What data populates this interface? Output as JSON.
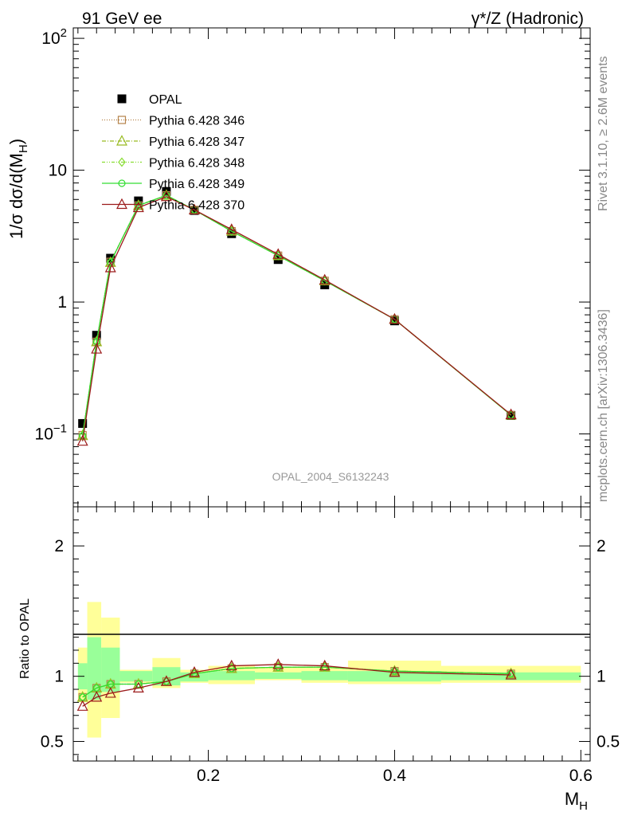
{
  "header": {
    "left_title": "91 GeV ee",
    "right_title": "γ*/Z (Hadronic)"
  },
  "side_labels": {
    "rivet": "Rivet 3.1.10, ≥ 2.6M events",
    "mcplots": "mcplots.cern.ch [arXiv:1306.3436]"
  },
  "chart_data": [
    {
      "type": "line",
      "panel": "main",
      "ylabel": "1/σ dσ/d(M_H)",
      "yscale": "log",
      "ylim": [
        0.028,
        120
      ],
      "xlim": [
        0.055,
        0.61
      ],
      "watermark": "OPAL_2004_S6132243",
      "legend_position": "top-left",
      "y_ticks": [
        {
          "value": 0.1,
          "label": "10",
          "sup": "−1"
        },
        {
          "value": 1,
          "label": "1",
          "sup": ""
        },
        {
          "value": 10,
          "label": "10",
          "sup": ""
        },
        {
          "value": 100,
          "label": "10",
          "sup": "2"
        }
      ],
      "data": {
        "x": [
          0.065,
          0.08,
          0.095,
          0.125,
          0.155,
          0.185,
          0.225,
          0.275,
          0.325,
          0.4,
          0.525
        ],
        "y": [
          0.12,
          0.56,
          2.15,
          5.85,
          6.9,
          4.95,
          3.3,
          2.1,
          1.35,
          0.72,
          0.138
        ],
        "name": "OPAL",
        "color": "#000000",
        "marker": "square"
      },
      "series": [
        {
          "name": "Pythia 6.428 346",
          "color": "#b5834a",
          "dash": "1,2",
          "marker": "square-open",
          "x": [
            0.065,
            0.08,
            0.095,
            0.125,
            0.155,
            0.185,
            0.225,
            0.275,
            0.325,
            0.4,
            0.525
          ],
          "y": [
            0.098,
            0.5,
            2.02,
            5.4,
            6.45,
            5.0,
            3.45,
            2.25,
            1.45,
            0.74,
            0.139
          ]
        },
        {
          "name": "Pythia 6.428 347",
          "color": "#99bb22",
          "dash": "5,2,1,2",
          "marker": "triangle-open",
          "x": [
            0.065,
            0.08,
            0.095,
            0.125,
            0.155,
            0.185,
            0.225,
            0.275,
            0.325,
            0.4,
            0.525
          ],
          "y": [
            0.097,
            0.5,
            2.0,
            5.4,
            6.45,
            5.0,
            3.45,
            2.25,
            1.45,
            0.74,
            0.139
          ]
        },
        {
          "name": "Pythia 6.428 348",
          "color": "#88dd33",
          "dash": "4,2,1,2,1,2",
          "marker": "diamond-open",
          "x": [
            0.065,
            0.08,
            0.095,
            0.125,
            0.155,
            0.185,
            0.225,
            0.275,
            0.325,
            0.4,
            0.525
          ],
          "y": [
            0.097,
            0.5,
            2.0,
            5.4,
            6.45,
            5.0,
            3.45,
            2.25,
            1.45,
            0.74,
            0.139
          ]
        },
        {
          "name": "Pythia 6.428 349",
          "color": "#33dd33",
          "dash": "",
          "marker": "circle-open",
          "x": [
            0.065,
            0.08,
            0.095,
            0.125,
            0.155,
            0.185,
            0.225,
            0.275,
            0.325,
            0.4,
            0.525
          ],
          "y": [
            0.097,
            0.5,
            2.0,
            5.4,
            6.45,
            5.0,
            3.45,
            2.25,
            1.45,
            0.74,
            0.139
          ]
        },
        {
          "name": "Pythia 6.428 370",
          "color": "#9b1a1a",
          "dash": "",
          "marker": "triangle-open",
          "x": [
            0.065,
            0.08,
            0.095,
            0.125,
            0.155,
            0.185,
            0.225,
            0.275,
            0.325,
            0.4,
            0.525
          ],
          "y": [
            0.088,
            0.44,
            1.82,
            5.2,
            6.3,
            5.0,
            3.55,
            2.3,
            1.47,
            0.74,
            0.14
          ]
        }
      ]
    },
    {
      "type": "line",
      "panel": "ratio",
      "ylabel": "Ratio to OPAL",
      "xlabel": "M_H",
      "ylim": [
        0.35,
        2.3
      ],
      "xlim": [
        0.055,
        0.61
      ],
      "y_ticks": [
        {
          "value": 0.5,
          "label": "0.5"
        },
        {
          "value": 1,
          "label": "1"
        },
        {
          "value": 2,
          "label": "2"
        }
      ],
      "x_ticks": [
        {
          "value": 0.2,
          "label": "0.2"
        },
        {
          "value": 0.4,
          "label": "0.4"
        },
        {
          "value": 0.6,
          "label": "0.6"
        }
      ],
      "bins": [
        0.06,
        0.07,
        0.085,
        0.105,
        0.14,
        0.17,
        0.2,
        0.25,
        0.3,
        0.35,
        0.45,
        0.6
      ],
      "band_inner": [
        [
          0.9,
          1.1
        ],
        [
          0.82,
          1.3
        ],
        [
          0.88,
          1.22
        ],
        [
          0.96,
          1.04
        ],
        [
          0.93,
          1.07
        ],
        [
          0.96,
          1.03
        ],
        [
          0.97,
          1.04
        ],
        [
          0.98,
          1.03
        ],
        [
          0.97,
          1.04
        ],
        [
          0.96,
          1.04
        ],
        [
          0.97,
          1.03
        ]
      ],
      "band_outer": [
        [
          0.8,
          1.22
        ],
        [
          0.53,
          1.57
        ],
        [
          0.68,
          1.45
        ],
        [
          0.95,
          1.05
        ],
        [
          0.91,
          1.14
        ],
        [
          0.95,
          1.05
        ],
        [
          0.94,
          1.08
        ],
        [
          0.97,
          1.07
        ],
        [
          0.95,
          1.07
        ],
        [
          0.94,
          1.12
        ],
        [
          0.95,
          1.08
        ]
      ],
      "band_colors": {
        "inner": "#99ff99",
        "outer": "#ffff99"
      },
      "series": [
        {
          "name": "Pythia 6.428 346",
          "color": "#b5834a",
          "dash": "1,2",
          "marker": "square-open",
          "x": [
            0.065,
            0.08,
            0.095,
            0.125,
            0.155,
            0.185,
            0.225,
            0.275,
            0.325,
            0.4,
            0.525
          ],
          "y": [
            0.84,
            0.91,
            0.94,
            0.94,
            0.96,
            1.02,
            1.06,
            1.07,
            1.07,
            1.04,
            1.02
          ]
        },
        {
          "name": "Pythia 6.428 347",
          "color": "#99bb22",
          "dash": "5,2,1,2",
          "marker": "triangle-open",
          "x": [
            0.065,
            0.08,
            0.095,
            0.125,
            0.155,
            0.185,
            0.225,
            0.275,
            0.325,
            0.4,
            0.525
          ],
          "y": [
            0.84,
            0.91,
            0.94,
            0.94,
            0.96,
            1.02,
            1.06,
            1.07,
            1.07,
            1.04,
            1.02
          ]
        },
        {
          "name": "Pythia 6.428 348",
          "color": "#88dd33",
          "dash": "4,2,1,2,1,2",
          "marker": "diamond-open",
          "x": [
            0.065,
            0.08,
            0.095,
            0.125,
            0.155,
            0.185,
            0.225,
            0.275,
            0.325,
            0.4,
            0.525
          ],
          "y": [
            0.84,
            0.91,
            0.94,
            0.94,
            0.96,
            1.02,
            1.06,
            1.07,
            1.07,
            1.04,
            1.02
          ]
        },
        {
          "name": "Pythia 6.428 349",
          "color": "#33dd33",
          "dash": "",
          "marker": "circle-open",
          "x": [
            0.065,
            0.08,
            0.095,
            0.125,
            0.155,
            0.185,
            0.225,
            0.275,
            0.325,
            0.4,
            0.525
          ],
          "y": [
            0.84,
            0.91,
            0.94,
            0.94,
            0.96,
            1.02,
            1.06,
            1.07,
            1.07,
            1.04,
            1.02
          ]
        },
        {
          "name": "Pythia 6.428 370",
          "color": "#9b1a1a",
          "dash": "",
          "marker": "triangle-open",
          "x": [
            0.065,
            0.08,
            0.095,
            0.125,
            0.155,
            0.185,
            0.225,
            0.275,
            0.325,
            0.4,
            0.525
          ],
          "y": [
            0.77,
            0.84,
            0.87,
            0.91,
            0.96,
            1.03,
            1.08,
            1.09,
            1.08,
            1.03,
            1.01
          ]
        }
      ]
    }
  ]
}
